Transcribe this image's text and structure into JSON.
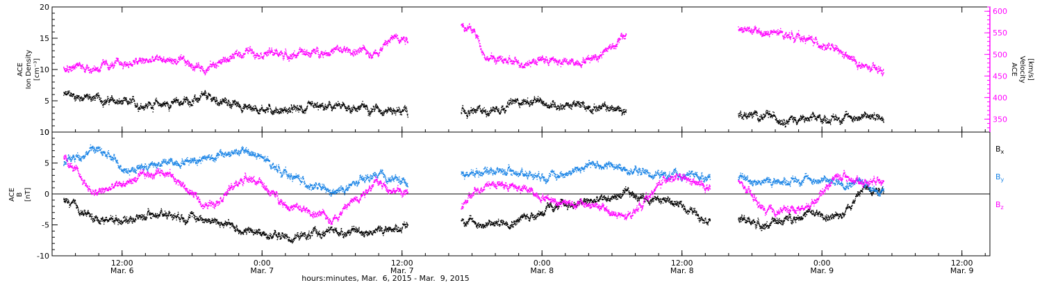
{
  "chart_data": [
    {
      "type": "scatter",
      "panel": "plasma",
      "left_axis": {
        "label_lines": [
          "ACE",
          "Ion Density",
          "[cm⁻³]"
        ],
        "ylim": [
          0,
          20
        ],
        "ticks": [
          0,
          5,
          10,
          15,
          20
        ],
        "color": "#000000"
      },
      "right_axis": {
        "label_lines": [
          "ACE",
          "Velocity",
          "[km/s]"
        ],
        "ylim": [
          320,
          610
        ],
        "ticks": [
          350,
          400,
          450,
          500,
          550,
          600
        ],
        "color": "#ff00ff"
      },
      "series": [
        {
          "axis": "left",
          "color": "#000000",
          "segments": [
            {
              "x": [
                6.29,
                6.4,
                6.52,
                6.65,
                6.8,
                6.95,
                7.1,
                7.25,
                7.4,
                7.52
              ],
              "y": [
                6,
                5.5,
                4.5,
                4.5,
                5.5,
                4,
                3.5,
                4,
                4,
                3.3
              ]
            },
            {
              "x": [
                7.71,
                7.8,
                7.92,
                8.05,
                8.2,
                8.3
              ],
              "y": [
                3,
                3.5,
                5,
                4.5,
                4,
                3.5
              ]
            },
            {
              "x": [
                8.7,
                8.8,
                8.95,
                9.1,
                9.22
              ],
              "y": [
                3,
                2.5,
                2,
                2.5,
                2.5
              ]
            }
          ]
        },
        {
          "axis": "right",
          "color": "#ff00ff",
          "segments": [
            {
              "x": [
                6.29,
                6.4,
                6.52,
                6.65,
                6.8,
                6.95,
                7.1,
                7.25,
                7.4,
                7.48,
                7.52
              ],
              "y": [
                475,
                470,
                480,
                490,
                470,
                510,
                500,
                510,
                505,
                545,
                540
              ]
            },
            {
              "x": [
                7.71,
                7.76,
                7.8,
                7.9,
                8.0,
                8.1,
                8.2,
                8.3
              ],
              "y": [
                570,
                550,
                495,
                480,
                490,
                480,
                500,
                545
              ]
            },
            {
              "x": [
                8.7,
                8.8,
                8.9,
                9.0,
                9.1,
                9.15,
                9.22
              ],
              "y": [
                560,
                550,
                545,
                525,
                490,
                470,
                460
              ]
            }
          ]
        }
      ]
    },
    {
      "type": "scatter",
      "panel": "magnetic-field",
      "left_axis": {
        "label_lines": [
          "ACE",
          "B",
          "[nT]"
        ],
        "ylim": [
          -10,
          10
        ],
        "ticks": [
          -10,
          -5,
          0,
          5,
          10
        ],
        "color": "#000000"
      },
      "zero_line": true,
      "legend": {
        "placement": "right",
        "entries": [
          "Bx",
          "By",
          "Bz"
        ]
      },
      "series": [
        {
          "name": "Bx",
          "color": "#000000",
          "segments": [
            {
              "x": [
                6.29,
                6.4,
                6.52,
                6.65,
                6.8,
                6.95,
                7.1,
                7.25,
                7.4,
                7.52
              ],
              "y": [
                -1,
                -4,
                -4,
                -3,
                -4,
                -6,
                -7,
                -6,
                -6,
                -5
              ]
            },
            {
              "x": [
                7.71,
                7.8,
                7.92,
                8.05,
                8.2,
                8.3,
                8.45,
                8.6
              ],
              "y": [
                -4,
                -5,
                -4,
                -2,
                -1,
                0,
                -1,
                -4
              ]
            },
            {
              "x": [
                8.7,
                8.8,
                8.95,
                9.05,
                9.15,
                9.22
              ],
              "y": [
                -4,
                -5,
                -3,
                -4,
                1,
                1
              ]
            }
          ]
        },
        {
          "name": "By",
          "color": "#1a84e6",
          "segments": [
            {
              "x": [
                6.29,
                6.4,
                6.52,
                6.65,
                6.8,
                6.95,
                7.1,
                7.25,
                7.4,
                7.52
              ],
              "y": [
                5,
                7.5,
                4,
                5,
                6,
                7,
                3,
                0,
                3,
                2
              ]
            },
            {
              "x": [
                7.71,
                7.8,
                7.92,
                8.05,
                8.2,
                8.3,
                8.45,
                8.6
              ],
              "y": [
                3,
                4,
                3.5,
                3,
                5,
                4,
                3,
                3
              ]
            },
            {
              "x": [
                8.7,
                8.8,
                8.95,
                9.05,
                9.15,
                9.22
              ],
              "y": [
                2.5,
                2,
                2.5,
                2,
                2,
                0
              ]
            }
          ]
        },
        {
          "name": "Bz",
          "color": "#ff00ff",
          "segments": [
            {
              "x": [
                6.29,
                6.4,
                6.52,
                6.65,
                6.8,
                6.95,
                7.1,
                7.25,
                7.4,
                7.52
              ],
              "y": [
                6,
                0,
                2,
                4,
                -2,
                3,
                -2,
                -4,
                2,
                0
              ]
            },
            {
              "x": [
                7.71,
                7.8,
                7.92,
                8.05,
                8.2,
                8.3,
                8.45,
                8.6
              ],
              "y": [
                -2,
                2,
                1,
                -1,
                -2,
                -4,
                3,
                1
              ]
            },
            {
              "x": [
                8.7,
                8.8,
                8.95,
                9.05,
                9.15,
                9.22
              ],
              "y": [
                2,
                -3,
                -2,
                3,
                2,
                3
              ]
            }
          ]
        }
      ]
    }
  ],
  "x_axis": {
    "range": [
      6.25,
      9.6
    ],
    "ticks": [
      {
        "x": 6.5,
        "time": "12:00",
        "date": "Mar. 6"
      },
      {
        "x": 7.0,
        "time": "0:00",
        "date": "Mar. 7"
      },
      {
        "x": 7.5,
        "time": "12:00",
        "date": "Mar. 7"
      },
      {
        "x": 8.0,
        "time": "0:00",
        "date": "Mar. 8"
      },
      {
        "x": 8.5,
        "time": "12:00",
        "date": "Mar. 8"
      },
      {
        "x": 9.0,
        "time": "0:00",
        "date": "Mar. 9"
      },
      {
        "x": 9.5,
        "time": "12:00",
        "date": "Mar. 9"
      }
    ],
    "title": "hours:minutes, Mar.  6, 2015 - Mar.  9, 2015"
  }
}
